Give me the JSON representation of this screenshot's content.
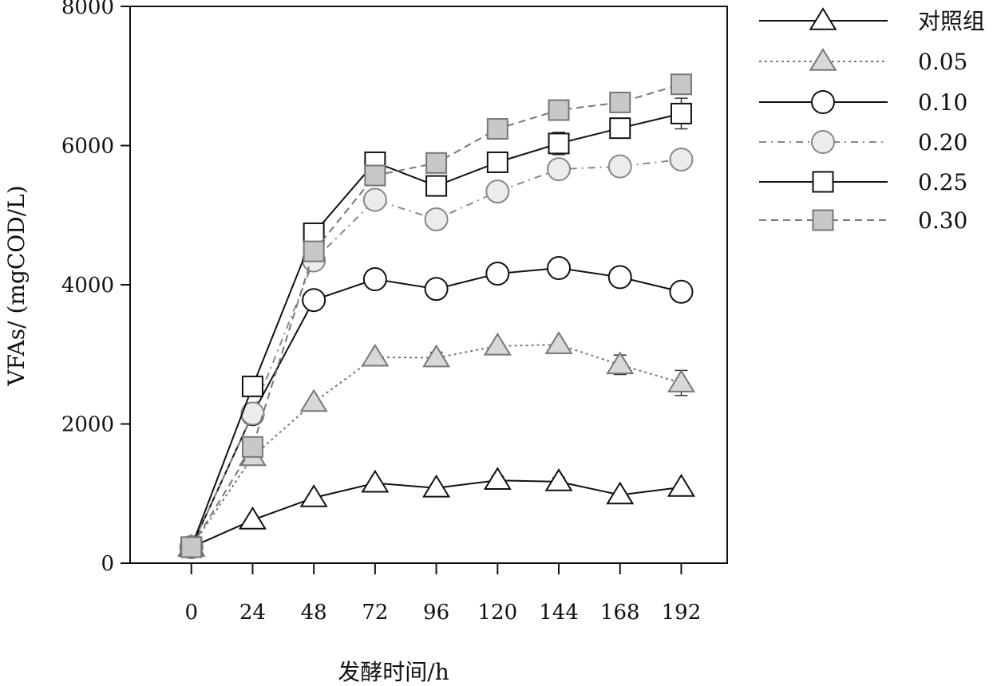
{
  "chart_data": {
    "type": "line",
    "xlabel": "发酵时间/h",
    "ylabel": "VFAs/ (mgCOD/L)",
    "x": [
      0,
      24,
      48,
      72,
      96,
      120,
      144,
      168,
      192
    ],
    "xticks": [
      "0",
      "24",
      "48",
      "72",
      "96",
      "120",
      "144",
      "168",
      "192"
    ],
    "xlim": [
      -24,
      210
    ],
    "ylim": [
      0,
      8000
    ],
    "yticks": [
      "0",
      "2000",
      "4000",
      "6000",
      "8000"
    ],
    "grid": false,
    "legend_position": "right-outside",
    "series": [
      {
        "name": "对照组",
        "marker": "triangle",
        "fill": "#ffffff",
        "stroke": "#111111",
        "line": "#111111",
        "dash": "",
        "values": [
          230,
          620,
          940,
          1150,
          1080,
          1190,
          1170,
          980,
          1090
        ],
        "errors": [
          0,
          0,
          0,
          0,
          0,
          60,
          60,
          0,
          0
        ]
      },
      {
        "name": "0.05",
        "marker": "triangle",
        "fill": "#d8d8d8",
        "stroke": "#777777",
        "line": "#777777",
        "dash": "3,4",
        "values": [
          230,
          1530,
          2310,
          2960,
          2950,
          3120,
          3140,
          2850,
          2590
        ],
        "errors": [
          0,
          0,
          0,
          0,
          80,
          0,
          0,
          140,
          180
        ]
      },
      {
        "name": "0.10",
        "marker": "circle",
        "fill": "#ffffff",
        "stroke": "#111111",
        "line": "#111111",
        "dash": "",
        "values": [
          230,
          2140,
          3780,
          4080,
          3940,
          4160,
          4240,
          4110,
          3900
        ],
        "errors": [
          0,
          0,
          0,
          0,
          0,
          0,
          0,
          0,
          0
        ]
      },
      {
        "name": "0.20",
        "marker": "circle",
        "fill": "#ececec",
        "stroke": "#888888",
        "line": "#888888",
        "dash": "9,6,2,6",
        "values": [
          230,
          2150,
          4350,
          5220,
          4940,
          5340,
          5660,
          5700,
          5800
        ],
        "errors": [
          0,
          0,
          0,
          0,
          0,
          0,
          0,
          0,
          0
        ]
      },
      {
        "name": "0.25",
        "marker": "square",
        "fill": "#ffffff",
        "stroke": "#111111",
        "line": "#111111",
        "dash": "",
        "values": [
          230,
          2540,
          4740,
          5760,
          5420,
          5760,
          6030,
          6250,
          6460
        ],
        "errors": [
          0,
          0,
          0,
          0,
          0,
          0,
          160,
          0,
          220
        ]
      },
      {
        "name": "0.30",
        "marker": "square",
        "fill": "#c8c8c8",
        "stroke": "#777777",
        "line": "#777777",
        "dash": "9,6",
        "values": [
          230,
          1670,
          4480,
          5570,
          5750,
          6240,
          6510,
          6620,
          6880
        ],
        "errors": [
          0,
          0,
          0,
          0,
          0,
          0,
          0,
          0,
          0
        ]
      }
    ]
  }
}
